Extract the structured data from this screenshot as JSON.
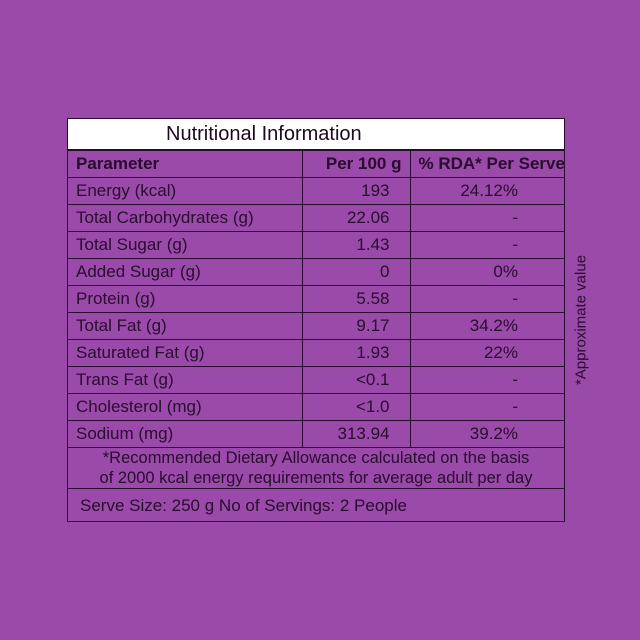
{
  "title": "Nutritional Information",
  "headers": {
    "parameter": "Parameter",
    "per100g": "Per 100 g",
    "rda": "% RDA* Per Serve"
  },
  "rows": [
    {
      "parameter": "Energy (kcal)",
      "per100g": "193",
      "rda": "24.12%"
    },
    {
      "parameter": "Total Carbohydrates (g)",
      "per100g": "22.06",
      "rda": "-"
    },
    {
      "parameter": "Total Sugar (g)",
      "per100g": "1.43",
      "rda": "-"
    },
    {
      "parameter": "Added Sugar (g)",
      "per100g": "0",
      "rda": "0%"
    },
    {
      "parameter": "Protein (g)",
      "per100g": "5.58",
      "rda": "-"
    },
    {
      "parameter": "Total Fat (g)",
      "per100g": "9.17",
      "rda": "34.2%"
    },
    {
      "parameter": "Saturated Fat (g)",
      "per100g": "1.93",
      "rda": "22%"
    },
    {
      "parameter": "Trans Fat (g)",
      "per100g": "<0.1",
      "rda": "-"
    },
    {
      "parameter": "Cholesterol  (mg)",
      "per100g": "<1.0",
      "rda": "-"
    },
    {
      "parameter": "Sodium  (mg)",
      "per100g": "313.94",
      "rda": "39.2%"
    }
  ],
  "footnote": {
    "line1": "*Recommended Dietary Allowance calculated on the basis",
    "line2": "of 2000 kcal energy requirements for average adult per day"
  },
  "serve_info": "Serve Size: 250 g No of Servings: 2 People",
  "side_note": "*Approximate value",
  "colors": {
    "background": "#9a4aa8",
    "text": "#2a0b30",
    "title_bar": "#ffffff"
  }
}
